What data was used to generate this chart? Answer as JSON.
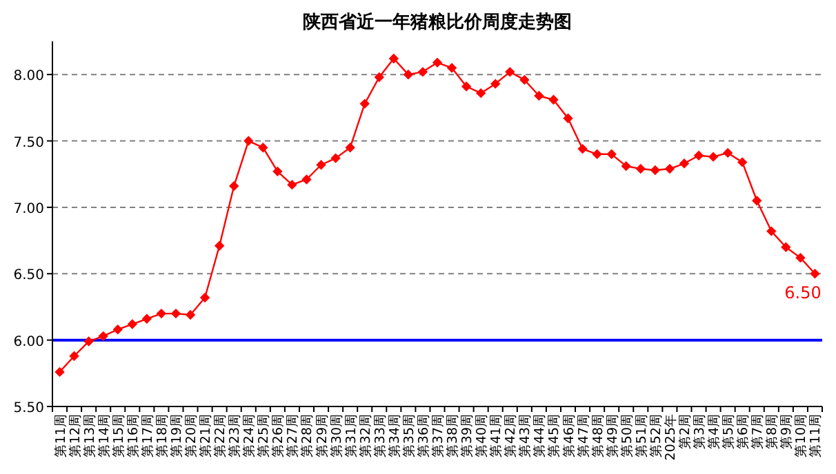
{
  "chart_data": {
    "type": "line",
    "title": "陕西省近一年猪粮比价周度走势图",
    "categories": [
      "第11周",
      "第12周",
      "第13周",
      "第14周",
      "第15周",
      "第16周",
      "第17周",
      "第18周",
      "第19周",
      "第20周",
      "第21周",
      "第22周",
      "第23周",
      "第24周",
      "第25周",
      "第26周",
      "第27周",
      "第28周",
      "第29周",
      "第30周",
      "第31周",
      "第32周",
      "第33周",
      "第34周",
      "第35周",
      "第36周",
      "第37周",
      "第38周",
      "第39周",
      "第40周",
      "第41周",
      "第42周",
      "第43周",
      "第44周",
      "第45周",
      "第46周",
      "第47周",
      "第48周",
      "第49周",
      "第50周",
      "第51周",
      "第52周",
      "2025年",
      "第2周",
      "第3周",
      "第4周",
      "第5周",
      "第6周",
      "第7周",
      "第8周",
      "第9周",
      "第10周",
      "第11周"
    ],
    "series": [
      {
        "color": "#ff0000",
        "values": [
          5.76,
          5.88,
          5.99,
          6.03,
          6.08,
          6.12,
          6.16,
          6.2,
          6.2,
          6.19,
          6.32,
          6.71,
          7.16,
          7.5,
          7.45,
          7.27,
          7.17,
          7.21,
          7.32,
          7.37,
          7.45,
          7.78,
          7.98,
          8.12,
          8.0,
          8.02,
          8.09,
          8.05,
          7.91,
          7.86,
          7.93,
          8.02,
          7.96,
          7.84,
          7.81,
          7.67,
          7.44,
          7.4,
          7.4,
          7.31,
          7.29,
          7.28,
          7.29,
          7.33,
          7.39,
          7.38,
          7.41,
          7.34,
          7.05,
          6.82,
          6.7,
          6.62,
          6.5
        ],
        "value_labels": [
          null,
          null,
          null,
          null,
          null,
          null,
          null,
          null,
          null,
          null,
          null,
          null,
          null,
          null,
          null,
          null,
          null,
          null,
          null,
          null,
          null,
          null,
          null,
          null,
          null,
          null,
          null,
          null,
          null,
          null,
          null,
          null,
          null,
          null,
          null,
          null,
          null,
          null,
          null,
          null,
          null,
          null,
          null,
          null,
          null,
          null,
          null,
          null,
          null,
          null,
          null,
          null,
          "6.50"
        ]
      }
    ],
    "ylim": [
      5.5,
      8.25
    ],
    "yticks": [
      {
        "value": 5.5,
        "label": "5.50"
      },
      {
        "value": 6.0,
        "label": "6.00"
      },
      {
        "value": 6.5,
        "label": "6.50"
      },
      {
        "value": 7.0,
        "label": "7.00"
      },
      {
        "value": 7.5,
        "label": "7.50"
      },
      {
        "value": 8.0,
        "label": "8.00"
      }
    ],
    "grid": "y",
    "marker": "diamond",
    "line_style": "solid",
    "ref_lines": [
      {
        "axis": "y",
        "value": 6.0,
        "color": "#0000ff"
      }
    ]
  }
}
